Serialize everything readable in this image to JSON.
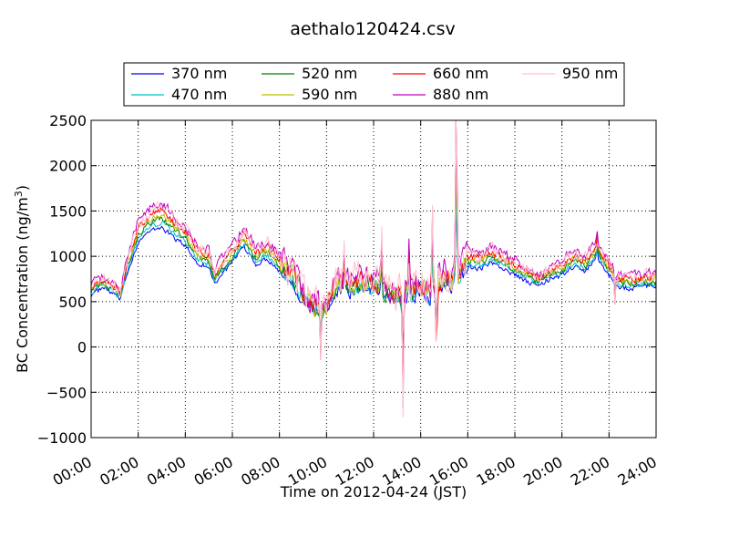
{
  "chart_data": {
    "type": "line",
    "title": "aethalo120424.csv",
    "xlabel": "Time on 2012-04-24 (JST)",
    "ylabel": "BC Concentration (ng/m",
    "ylabel_superscript": "3",
    "ylabel_suffix": ")",
    "xlim": [
      "00:00",
      "24:00"
    ],
    "ylim": [
      -1000,
      2500
    ],
    "x_ticks": [
      "00:00",
      "02:00",
      "04:00",
      "06:00",
      "08:00",
      "10:00",
      "12:00",
      "14:00",
      "16:00",
      "18:00",
      "20:00",
      "22:00",
      "24:00"
    ],
    "y_ticks": [
      -1000,
      -500,
      0,
      500,
      1000,
      1500,
      2000,
      2500
    ],
    "y_tick_labels": [
      "−1000",
      "−500",
      "0",
      "500",
      "1000",
      "1500",
      "2000",
      "2500"
    ],
    "grid": true,
    "legend_position": "top-center",
    "anchors": [
      {
        "x": "00:00",
        "y": 620
      },
      {
        "x": "00:30",
        "y": 700
      },
      {
        "x": "01:00",
        "y": 620
      },
      {
        "x": "01:15",
        "y": 560
      },
      {
        "x": "01:30",
        "y": 850
      },
      {
        "x": "02:00",
        "y": 1250
      },
      {
        "x": "02:30",
        "y": 1370
      },
      {
        "x": "03:00",
        "y": 1420
      },
      {
        "x": "03:30",
        "y": 1300
      },
      {
        "x": "04:00",
        "y": 1200
      },
      {
        "x": "04:30",
        "y": 1000
      },
      {
        "x": "05:00",
        "y": 950
      },
      {
        "x": "05:15",
        "y": 750
      },
      {
        "x": "05:30",
        "y": 850
      },
      {
        "x": "06:00",
        "y": 1000
      },
      {
        "x": "06:30",
        "y": 1180
      },
      {
        "x": "07:00",
        "y": 980
      },
      {
        "x": "07:30",
        "y": 1050
      },
      {
        "x": "08:00",
        "y": 900
      },
      {
        "x": "08:30",
        "y": 800
      },
      {
        "x": "09:00",
        "y": 560
      },
      {
        "x": "09:30",
        "y": 420
      },
      {
        "x": "10:00",
        "y": 450
      },
      {
        "x": "10:30",
        "y": 700
      },
      {
        "x": "11:00",
        "y": 650
      },
      {
        "x": "11:30",
        "y": 700
      },
      {
        "x": "12:00",
        "y": 700
      },
      {
        "x": "12:30",
        "y": 600
      },
      {
        "x": "13:00",
        "y": 550
      },
      {
        "x": "13:30",
        "y": 580
      },
      {
        "x": "14:00",
        "y": 650
      },
      {
        "x": "14:30",
        "y": 560
      },
      {
        "x": "15:00",
        "y": 750
      },
      {
        "x": "15:30",
        "y": 700
      },
      {
        "x": "16:00",
        "y": 950
      },
      {
        "x": "16:30",
        "y": 930
      },
      {
        "x": "17:00",
        "y": 990
      },
      {
        "x": "17:30",
        "y": 930
      },
      {
        "x": "18:00",
        "y": 850
      },
      {
        "x": "18:30",
        "y": 780
      },
      {
        "x": "19:00",
        "y": 720
      },
      {
        "x": "19:30",
        "y": 800
      },
      {
        "x": "20:00",
        "y": 850
      },
      {
        "x": "20:30",
        "y": 950
      },
      {
        "x": "21:00",
        "y": 900
      },
      {
        "x": "21:30",
        "y": 1050
      },
      {
        "x": "22:00",
        "y": 850
      },
      {
        "x": "22:30",
        "y": 700
      },
      {
        "x": "23:00",
        "y": 700
      },
      {
        "x": "23:30",
        "y": 720
      },
      {
        "x": "24:00",
        "y": 720
      }
    ],
    "spikes": [
      {
        "x": "09:45",
        "y": -140
      },
      {
        "x": "10:45",
        "y": 1100
      },
      {
        "x": "12:20",
        "y": 1400
      },
      {
        "x": "13:15",
        "y": -670
      },
      {
        "x": "13:30",
        "y": 1100
      },
      {
        "x": "14:30",
        "y": 1500
      },
      {
        "x": "14:40",
        "y": -100
      },
      {
        "x": "15:30",
        "y": 2320
      },
      {
        "x": "15:32",
        "y": 1600
      },
      {
        "x": "21:30",
        "y": 1230
      },
      {
        "x": "22:15",
        "y": 500
      }
    ],
    "series": [
      {
        "name": "370 nm",
        "color": "#0000ff",
        "scale": 0.93,
        "noise": 40
      },
      {
        "name": "470 nm",
        "color": "#00bfbf",
        "scale": 0.97,
        "noise": 45
      },
      {
        "name": "520 nm",
        "color": "#008000",
        "scale": 1.0,
        "noise": 50
      },
      {
        "name": "590 nm",
        "color": "#bfbf00",
        "scale": 1.03,
        "noise": 55
      },
      {
        "name": "660 nm",
        "color": "#ff0000",
        "scale": 1.06,
        "noise": 60
      },
      {
        "name": "880 nm",
        "color": "#bf00bf",
        "scale": 1.12,
        "noise": 75
      },
      {
        "name": "950 nm",
        "color": "#ffc0cb",
        "scale": 1.08,
        "noise": 110
      }
    ]
  }
}
